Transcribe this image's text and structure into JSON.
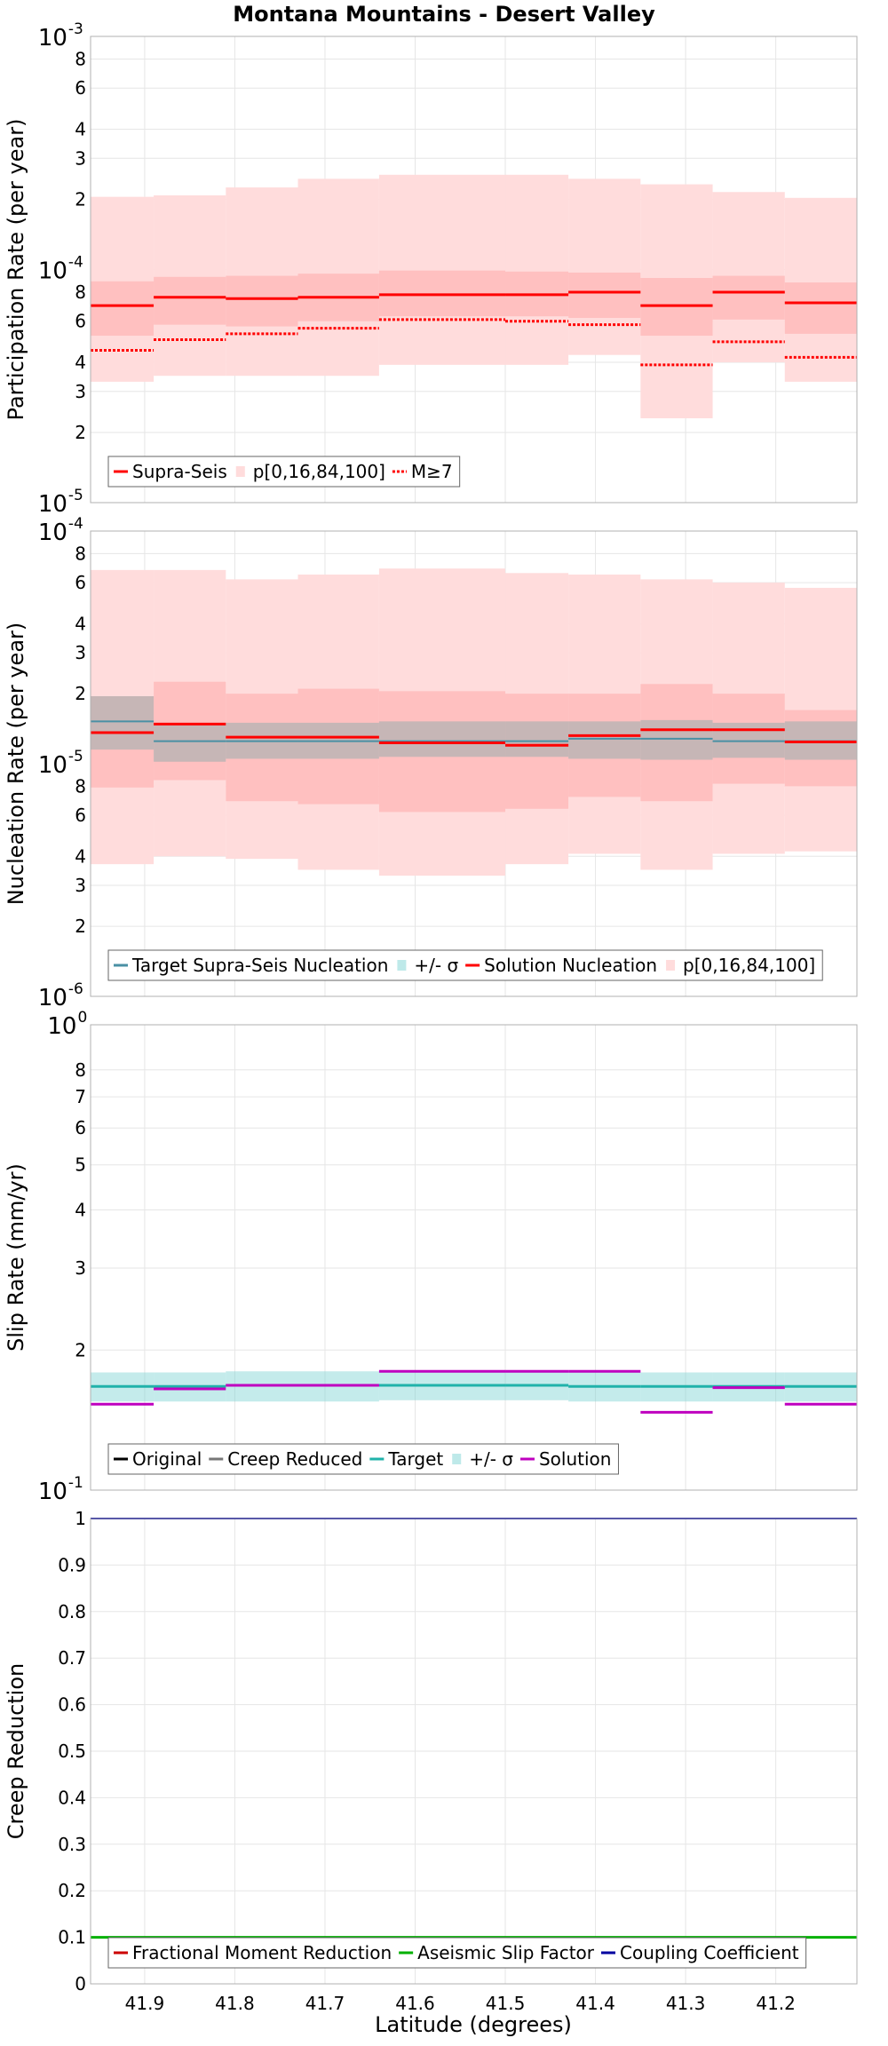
{
  "title": "Montana Mountains - Desert Valley",
  "xlabel": "Latitude (degrees)",
  "x_ticks": [
    "41.9",
    "41.8",
    "41.7",
    "41.6",
    "41.5",
    "41.4",
    "41.3",
    "41.2"
  ],
  "colors": {
    "supra": "#ff0000",
    "band_light": "#ffdcdc",
    "band_mid": "#ffaaaa",
    "target_nuc": "#4a90a4",
    "target_band": "#7dd3d3",
    "gray_band": "#b3b3b3",
    "creep_gray": "#777777",
    "slip_target": "#20b2aa",
    "solution_purple": "#bf00bf",
    "aseismic_green": "#00b000",
    "coupling_blue": "#0000a0",
    "fractional_red": "#cc0000",
    "grid": "#e6e6e6"
  },
  "chart_data": [
    {
      "type": "line",
      "ylabel": "Participation Rate (per year)",
      "scale": "log",
      "ylim": [
        1e-05,
        0.001
      ],
      "ytick_labels": [
        {
          "v": 1e-05,
          "base": "10",
          "exp": "-5"
        },
        {
          "v": 2e-05,
          "text": "2"
        },
        {
          "v": 3e-05,
          "text": "3"
        },
        {
          "v": 4e-05,
          "text": "4"
        },
        {
          "v": 6e-05,
          "text": "6"
        },
        {
          "v": 8e-05,
          "text": "8"
        },
        {
          "v": 0.0001,
          "base": "10",
          "exp": "-4"
        },
        {
          "v": 0.0002,
          "text": "2"
        },
        {
          "v": 0.0003,
          "text": "3"
        },
        {
          "v": 0.0004,
          "text": "4"
        },
        {
          "v": 0.0006,
          "text": "6"
        },
        {
          "v": 0.0008,
          "text": "8"
        },
        {
          "v": 0.001,
          "base": "10",
          "exp": "-3"
        }
      ],
      "segments_lat": [
        [
          41.96,
          41.89
        ],
        [
          41.89,
          41.81
        ],
        [
          41.81,
          41.73
        ],
        [
          41.73,
          41.64
        ],
        [
          41.64,
          41.5
        ],
        [
          41.5,
          41.43
        ],
        [
          41.43,
          41.35
        ],
        [
          41.35,
          41.27
        ],
        [
          41.27,
          41.19
        ],
        [
          41.19,
          41.11
        ]
      ],
      "series": [
        {
          "name": "Supra-Seis",
          "values": [
            7e-05,
            7.6e-05,
            7.5e-05,
            7.6e-05,
            7.8e-05,
            7.8e-05,
            8e-05,
            7e-05,
            8e-05,
            7.2e-05
          ]
        },
        {
          "name": "p[0,16,84,100]",
          "p0": [
            3.3e-05,
            3.5e-05,
            3.5e-05,
            3.5e-05,
            3.9e-05,
            3.9e-05,
            4.3e-05,
            2.3e-05,
            4e-05,
            3.3e-05
          ],
          "p16": [
            5.2e-05,
            5.8e-05,
            5.7e-05,
            6e-05,
            6.3e-05,
            6.3e-05,
            6.2e-05,
            5.2e-05,
            6.1e-05,
            5.3e-05
          ],
          "p84": [
            8.9e-05,
            9.3e-05,
            9.4e-05,
            9.6e-05,
            9.9e-05,
            9.8e-05,
            9.7e-05,
            9.2e-05,
            9.4e-05,
            8.8e-05
          ],
          "p100": [
            0.000205,
            0.000208,
            0.000225,
            0.000245,
            0.000255,
            0.000255,
            0.000245,
            0.000232,
            0.000215,
            0.000203
          ]
        },
        {
          "name": "M≥7",
          "values": [
            4.5e-05,
            5e-05,
            5.3e-05,
            5.6e-05,
            6.1e-05,
            6e-05,
            5.8e-05,
            3.9e-05,
            4.9e-05,
            4.2e-05
          ]
        }
      ],
      "legend": {
        "placement": "bottom-left",
        "items": [
          {
            "label": "Supra-Seis",
            "kind": "line-red"
          },
          {
            "label": "p[0,16,84,100]",
            "kind": "band-light"
          },
          {
            "label": "M≥7",
            "kind": "dotted-red"
          }
        ]
      }
    },
    {
      "type": "line",
      "ylabel": "Nucleation Rate (per year)",
      "scale": "log",
      "ylim": [
        1e-06,
        0.0001
      ],
      "ytick_labels": [
        {
          "v": 1e-06,
          "base": "10",
          "exp": "-6"
        },
        {
          "v": 2e-06,
          "text": "2"
        },
        {
          "v": 3e-06,
          "text": "3"
        },
        {
          "v": 4e-06,
          "text": "4"
        },
        {
          "v": 6e-06,
          "text": "6"
        },
        {
          "v": 8e-06,
          "text": "8"
        },
        {
          "v": 1e-05,
          "base": "10",
          "exp": "-5"
        },
        {
          "v": 2e-05,
          "text": "2"
        },
        {
          "v": 3e-05,
          "text": "3"
        },
        {
          "v": 4e-05,
          "text": "4"
        },
        {
          "v": 6e-05,
          "text": "6"
        },
        {
          "v": 8e-05,
          "text": "8"
        },
        {
          "v": 0.0001,
          "base": "10",
          "exp": "-4"
        }
      ],
      "segments_lat": [
        [
          41.96,
          41.89
        ],
        [
          41.89,
          41.81
        ],
        [
          41.81,
          41.73
        ],
        [
          41.73,
          41.64
        ],
        [
          41.64,
          41.5
        ],
        [
          41.5,
          41.43
        ],
        [
          41.43,
          41.35
        ],
        [
          41.35,
          41.27
        ],
        [
          41.27,
          41.19
        ],
        [
          41.19,
          41.11
        ]
      ],
      "series": [
        {
          "name": "Target Supra-Seis Nucleation",
          "values": [
            1.52e-05,
            1.25e-05,
            1.25e-05,
            1.25e-05,
            1.25e-05,
            1.25e-05,
            1.28e-05,
            1.28e-05,
            1.25e-05,
            1.25e-05
          ]
        },
        {
          "name": "+/- σ",
          "lower": [
            1.15e-05,
            1.02e-05,
            1.05e-05,
            1.05e-05,
            1.07e-05,
            1.07e-05,
            1.05e-05,
            1.04e-05,
            1.06e-05,
            1.04e-05
          ],
          "upper": [
            1.95e-05,
            1.5e-05,
            1.5e-05,
            1.5e-05,
            1.52e-05,
            1.52e-05,
            1.52e-05,
            1.54e-05,
            1.5e-05,
            1.52e-05
          ]
        },
        {
          "name": "Solution Nucleation",
          "values": [
            1.36e-05,
            1.48e-05,
            1.3e-05,
            1.3e-05,
            1.23e-05,
            1.2e-05,
            1.32e-05,
            1.4e-05,
            1.4e-05,
            1.24e-05
          ]
        },
        {
          "name": "p[0,16,84,100]",
          "p0": [
            3.7e-06,
            4e-06,
            3.9e-06,
            3.5e-06,
            3.3e-06,
            3.7e-06,
            4.1e-06,
            3.5e-06,
            4.1e-06,
            4.2e-06
          ],
          "p16": [
            7.9e-06,
            8.5e-06,
            6.9e-06,
            6.7e-06,
            6.2e-06,
            6.4e-06,
            7.2e-06,
            6.9e-06,
            8.2e-06,
            8e-06
          ],
          "p84": [
            1.95e-05,
            2.25e-05,
            2e-05,
            2.1e-05,
            2.05e-05,
            2e-05,
            2e-05,
            2.2e-05,
            2e-05,
            1.7e-05
          ],
          "p100": [
            6.8e-05,
            6.8e-05,
            6.2e-05,
            6.5e-05,
            6.9e-05,
            6.6e-05,
            6.5e-05,
            6.2e-05,
            6e-05,
            5.7e-05
          ]
        }
      ],
      "legend": {
        "placement": "bottom-left",
        "items": [
          {
            "label": "Target Supra-Seis Nucleation",
            "kind": "line-target"
          },
          {
            "label": "+/- σ",
            "kind": "band-cyan"
          },
          {
            "label": "Solution Nucleation",
            "kind": "line-red"
          },
          {
            "label": "p[0,16,84,100]",
            "kind": "band-light"
          }
        ]
      }
    },
    {
      "type": "line",
      "ylabel": "Slip Rate (mm/yr)",
      "scale": "log",
      "ylim": [
        0.1,
        1
      ],
      "ytick_labels": [
        {
          "v": 0.1,
          "base": "10",
          "exp": "-1"
        },
        {
          "v": 0.2,
          "text": "2"
        },
        {
          "v": 0.3,
          "text": "3"
        },
        {
          "v": 0.4,
          "text": "4"
        },
        {
          "v": 0.5,
          "text": "5"
        },
        {
          "v": 0.6,
          "text": "6"
        },
        {
          "v": 0.7,
          "text": "7"
        },
        {
          "v": 0.8,
          "text": "8"
        },
        {
          "v": 1,
          "base": "10",
          "exp": "0"
        }
      ],
      "segments_lat": [
        [
          41.96,
          41.89
        ],
        [
          41.89,
          41.81
        ],
        [
          41.81,
          41.73
        ],
        [
          41.73,
          41.64
        ],
        [
          41.64,
          41.5
        ],
        [
          41.5,
          41.43
        ],
        [
          41.43,
          41.35
        ],
        [
          41.35,
          41.27
        ],
        [
          41.27,
          41.19
        ],
        [
          41.19,
          41.11
        ]
      ],
      "series": [
        {
          "name": "Target",
          "values": [
            0.167,
            0.167,
            0.168,
            0.168,
            0.168,
            0.168,
            0.167,
            0.167,
            0.167,
            0.167
          ]
        },
        {
          "name": "+/- σ",
          "lower": [
            0.155,
            0.155,
            0.155,
            0.155,
            0.156,
            0.156,
            0.155,
            0.155,
            0.155,
            0.155
          ],
          "upper": [
            0.179,
            0.179,
            0.18,
            0.18,
            0.18,
            0.18,
            0.179,
            0.179,
            0.179,
            0.179
          ]
        },
        {
          "name": "Solution",
          "values": [
            0.153,
            0.165,
            0.168,
            0.168,
            0.18,
            0.18,
            0.18,
            0.147,
            0.166,
            0.153
          ]
        }
      ],
      "legend": {
        "placement": "bottom-left",
        "items": [
          {
            "label": "Original",
            "kind": "line-black"
          },
          {
            "label": "Creep Reduced",
            "kind": "line-gray"
          },
          {
            "label": "Target",
            "kind": "line-teal"
          },
          {
            "label": "+/- σ",
            "kind": "band-cyan"
          },
          {
            "label": "Solution",
            "kind": "line-purple"
          }
        ]
      }
    },
    {
      "type": "line",
      "ylabel": "Creep Reduction",
      "scale": "linear",
      "ylim": [
        0,
        1
      ],
      "ytick_labels": [
        {
          "v": 0,
          "text": "0"
        },
        {
          "v": 0.1,
          "text": "0.1"
        },
        {
          "v": 0.2,
          "text": "0.2"
        },
        {
          "v": 0.3,
          "text": "0.3"
        },
        {
          "v": 0.4,
          "text": "0.4"
        },
        {
          "v": 0.5,
          "text": "0.5"
        },
        {
          "v": 0.6,
          "text": "0.6"
        },
        {
          "v": 0.7,
          "text": "0.7"
        },
        {
          "v": 0.8,
          "text": "0.8"
        },
        {
          "v": 0.9,
          "text": "0.9"
        },
        {
          "v": 1,
          "text": "1"
        }
      ],
      "series": [
        {
          "name": "Aseismic Slip Factor",
          "values": [
            0.1
          ]
        },
        {
          "name": "Coupling Coefficient",
          "values": [
            1.0
          ]
        }
      ],
      "legend": {
        "placement": "bottom-left",
        "items": [
          {
            "label": "Fractional Moment Reduction",
            "kind": "line-darkred"
          },
          {
            "label": "Aseismic Slip Factor",
            "kind": "line-green"
          },
          {
            "label": "Coupling Coefficient",
            "kind": "line-blue"
          }
        ]
      }
    }
  ]
}
